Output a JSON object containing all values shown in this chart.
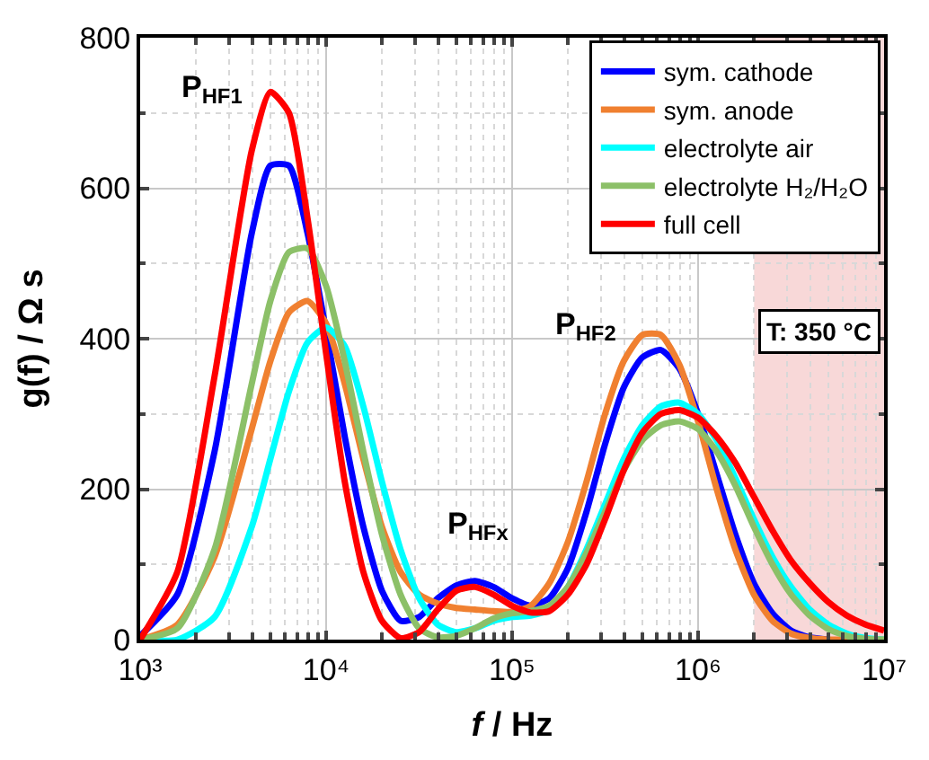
{
  "chart_data": {
    "type": "line",
    "xlabel": "f / Hz",
    "ylabel": "g(f) / Ω s",
    "log": "x",
    "x": [
      1000,
      1585,
      2512,
      3981,
      5012,
      6310,
      7943,
      10000,
      12589,
      15849,
      19953,
      25119,
      31623,
      39811,
      50119,
      63096,
      79433,
      100000,
      125893,
      158489,
      199526,
      251189,
      316228,
      398107,
      501187,
      630957,
      794328,
      1000000,
      1258925,
      1584893,
      1995262,
      2511886,
      3162278,
      3981072,
      5011872,
      6309573,
      7943282,
      10000000
    ],
    "series": [
      {
        "name": "sym. cathode",
        "color": "#0000ff",
        "values": [
          5,
          60,
          250,
          540,
          630,
          630,
          540,
          410,
          270,
          150,
          65,
          25,
          30,
          55,
          72,
          78,
          70,
          55,
          45,
          55,
          95,
          170,
          260,
          335,
          375,
          385,
          360,
          300,
          220,
          140,
          75,
          35,
          12,
          3,
          0,
          null,
          null,
          null
        ]
      },
      {
        "name": "sym. anode",
        "color": "#f08030",
        "values": [
          0,
          20,
          110,
          280,
          370,
          435,
          450,
          420,
          340,
          240,
          150,
          90,
          60,
          48,
          42,
          40,
          38,
          37,
          45,
          75,
          130,
          210,
          300,
          370,
          405,
          405,
          365,
          290,
          200,
          120,
          60,
          25,
          8,
          2,
          0,
          0,
          0,
          0
        ]
      },
      {
        "name": "electrolyte air",
        "color": "#00ffff",
        "values": [
          0,
          0,
          30,
          150,
          240,
          330,
          395,
          415,
          390,
          310,
          210,
          120,
          55,
          20,
          10,
          15,
          25,
          30,
          32,
          40,
          70,
          120,
          180,
          240,
          285,
          310,
          315,
          300,
          265,
          215,
          160,
          110,
          70,
          40,
          20,
          8,
          2,
          0
        ]
      },
      {
        "name": "electrolyte H₂/H₂O",
        "color": "#8cc068",
        "values": [
          0,
          15,
          120,
          340,
          450,
          515,
          520,
          470,
          370,
          250,
          140,
          60,
          15,
          3,
          5,
          15,
          28,
          35,
          38,
          45,
          70,
          115,
          170,
          225,
          265,
          285,
          290,
          280,
          250,
          205,
          150,
          100,
          60,
          32,
          14,
          5,
          1,
          0
        ]
      },
      {
        "name": "full cell",
        "color": "#ff0000",
        "values": [
          0,
          90,
          350,
          650,
          728,
          700,
          560,
          380,
          210,
          90,
          25,
          2,
          10,
          40,
          65,
          70,
          60,
          45,
          36,
          38,
          60,
          100,
          160,
          225,
          275,
          300,
          305,
          295,
          270,
          235,
          190,
          145,
          105,
          75,
          50,
          32,
          20,
          12
        ]
      }
    ],
    "xlim": [
      1000,
      10000000
    ],
    "xticks": [
      {
        "value": 1000,
        "label": "10³"
      },
      {
        "value": 10000,
        "label": "10⁴"
      },
      {
        "value": 100000,
        "label": "10⁵"
      },
      {
        "value": 1000000,
        "label": "10⁶"
      },
      {
        "value": 10000000,
        "label": "10⁷"
      }
    ],
    "ylim": [
      0,
      800
    ],
    "yticks": [
      0,
      200,
      400,
      600,
      800
    ],
    "grid": true,
    "legend": "top right",
    "line_style": "solid",
    "bands": [
      {
        "axis": "x",
        "from": 2000000,
        "to": 10000000,
        "color": "#f8d8d8"
      }
    ],
    "annotations": [
      "P$_{HF1}$",
      "P$_{HFx}$",
      "P$_{HF2}$",
      "T: 350 °C"
    ]
  }
}
